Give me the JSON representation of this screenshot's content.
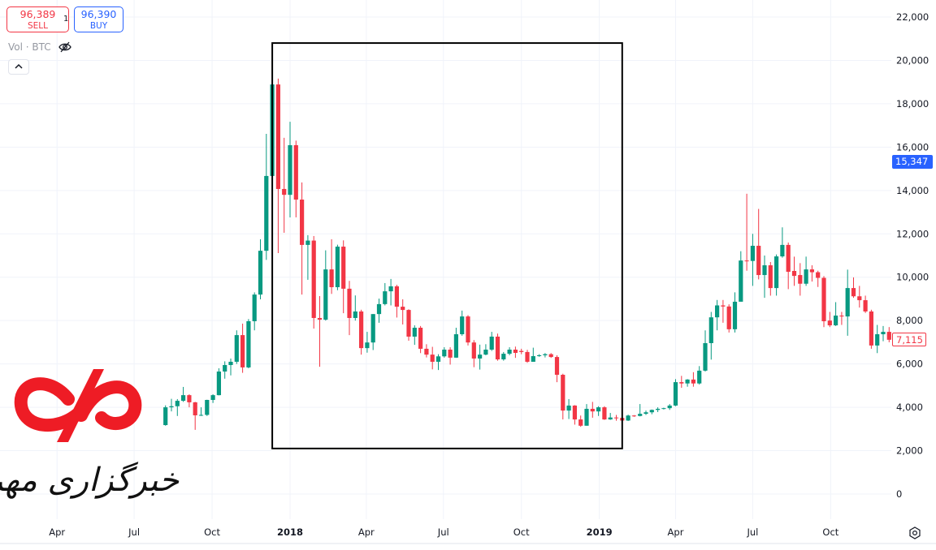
{
  "trade": {
    "sell_price": "96,389",
    "sell_label": "SELL",
    "spread": "1",
    "buy_price": "96,390",
    "buy_label": "BUY"
  },
  "legend": {
    "text": "Vol · BTC",
    "visibility_icon": "eye-off-icon",
    "collapse_icon": "chevron-up-icon"
  },
  "price_labels": {
    "last": "15,347",
    "current": "7,115"
  },
  "colors": {
    "up": "#089981",
    "down": "#f23645",
    "accent": "#2962ff",
    "box": "#000000",
    "grid": "#f0f3fa"
  },
  "settings_icon": "gear-icon",
  "logo": {
    "text": "خبرگزاری مهر",
    "color": "#ee1c25"
  },
  "chart_data": {
    "type": "candlestick",
    "symbol": "BTC",
    "interval": "weekly",
    "ylim": [
      0,
      22000
    ],
    "grid": true,
    "y_ticks": [
      0,
      2000,
      4000,
      6000,
      8000,
      10000,
      12000,
      14000,
      16000,
      18000,
      20000,
      22000
    ],
    "y_tick_labels": [
      "0",
      "2,000",
      "4,000",
      "6,000",
      "8,000",
      "10,000",
      "12,000",
      "14,000",
      "16,000",
      "18,000",
      "20,000",
      "22,000"
    ],
    "x_ticks": [
      {
        "date": "2017-04-01",
        "label": "Apr",
        "bold": false
      },
      {
        "date": "2017-07-01",
        "label": "Jul",
        "bold": false
      },
      {
        "date": "2017-10-01",
        "label": "Oct",
        "bold": false
      },
      {
        "date": "2018-01-01",
        "label": "2018",
        "bold": true
      },
      {
        "date": "2018-04-01",
        "label": "Apr",
        "bold": false
      },
      {
        "date": "2018-07-01",
        "label": "Jul",
        "bold": false
      },
      {
        "date": "2018-10-01",
        "label": "Oct",
        "bold": false
      },
      {
        "date": "2019-01-01",
        "label": "2019",
        "bold": true
      },
      {
        "date": "2019-04-01",
        "label": "Apr",
        "bold": false
      },
      {
        "date": "2019-07-01",
        "label": "Jul",
        "bold": false
      },
      {
        "date": "2019-10-01",
        "label": "Oct",
        "bold": false
      }
    ],
    "annotation_rectangle": {
      "from_date": "2017-12-11",
      "to_date": "2019-01-28",
      "top": 20800,
      "bottom": 2100
    },
    "columns": [
      "date",
      "open",
      "high",
      "low",
      "close"
    ],
    "candles": [
      [
        "2017-08-07",
        3180,
        4090,
        3150,
        4000
      ],
      [
        "2017-08-14",
        4000,
        4390,
        3810,
        4050
      ],
      [
        "2017-08-21",
        4050,
        4380,
        3600,
        4300
      ],
      [
        "2017-08-28",
        4300,
        4940,
        4250,
        4560
      ],
      [
        "2017-09-04",
        4560,
        4600,
        4000,
        4230
      ],
      [
        "2017-09-11",
        4230,
        4250,
        2960,
        3630
      ],
      [
        "2017-09-18",
        3630,
        4000,
        3600,
        3650
      ],
      [
        "2017-09-25",
        3650,
        4350,
        3600,
        4340
      ],
      [
        "2017-10-02",
        4340,
        4600,
        4200,
        4560
      ],
      [
        "2017-10-09",
        4560,
        5800,
        4550,
        5650
      ],
      [
        "2017-10-16",
        5650,
        6120,
        5320,
        5950
      ],
      [
        "2017-10-23",
        5950,
        6250,
        5470,
        6100
      ],
      [
        "2017-10-30",
        6100,
        7550,
        6000,
        7330
      ],
      [
        "2017-11-06",
        7330,
        7860,
        5590,
        5840
      ],
      [
        "2017-11-13",
        5840,
        8070,
        5800,
        7970
      ],
      [
        "2017-11-20",
        7970,
        9300,
        7550,
        9200
      ],
      [
        "2017-11-27",
        9200,
        11750,
        8980,
        11220
      ],
      [
        "2017-12-04",
        11220,
        16610,
        10800,
        14670
      ],
      [
        "2017-12-11",
        14670,
        19610,
        14600,
        18890
      ],
      [
        "2017-12-18",
        18890,
        19160,
        11110,
        14070
      ],
      [
        "2017-12-25",
        14070,
        16430,
        12050,
        13800
      ],
      [
        "2018-01-01",
        13800,
        17170,
        12760,
        16090
      ],
      [
        "2018-01-08",
        16090,
        16300,
        12760,
        13580
      ],
      [
        "2018-01-15",
        13580,
        14370,
        9200,
        11490
      ],
      [
        "2018-01-22",
        11490,
        11940,
        9880,
        11690
      ],
      [
        "2018-01-29",
        11690,
        11900,
        7630,
        8120
      ],
      [
        "2018-02-05",
        8120,
        9130,
        5870,
        8040
      ],
      [
        "2018-02-12",
        8040,
        11240,
        8000,
        10360
      ],
      [
        "2018-02-19",
        10360,
        11750,
        9230,
        9540
      ],
      [
        "2018-02-26",
        9540,
        11500,
        9400,
        11410
      ],
      [
        "2018-03-05",
        11410,
        11700,
        8340,
        9470
      ],
      [
        "2018-03-12",
        9470,
        9830,
        7330,
        8120
      ],
      [
        "2018-03-19",
        8120,
        9160,
        8000,
        8420
      ],
      [
        "2018-03-26",
        8420,
        8500,
        6430,
        6730
      ],
      [
        "2018-04-02",
        6730,
        7480,
        6520,
        6990
      ],
      [
        "2018-04-09",
        6990,
        8300,
        6640,
        8300
      ],
      [
        "2018-04-16",
        8300,
        9010,
        7900,
        8760
      ],
      [
        "2018-04-23",
        8760,
        9730,
        8700,
        9350
      ],
      [
        "2018-04-30",
        9350,
        9920,
        8700,
        9580
      ],
      [
        "2018-05-07",
        9580,
        9650,
        8140,
        8640
      ],
      [
        "2018-05-14",
        8640,
        8980,
        7820,
        8490
      ],
      [
        "2018-05-21",
        8490,
        8520,
        7070,
        7260
      ],
      [
        "2018-05-28",
        7260,
        7780,
        6880,
        7670
      ],
      [
        "2018-06-04",
        7670,
        7750,
        6500,
        6700
      ],
      [
        "2018-06-11",
        6700,
        6910,
        6300,
        6430
      ],
      [
        "2018-06-18",
        6430,
        6790,
        5750,
        6100
      ],
      [
        "2018-06-25",
        6100,
        6450,
        5720,
        6350
      ],
      [
        "2018-07-02",
        6350,
        6770,
        6290,
        6660
      ],
      [
        "2018-07-09",
        6660,
        6770,
        5970,
        6290
      ],
      [
        "2018-07-16",
        6290,
        7670,
        6280,
        7370
      ],
      [
        "2018-07-23",
        7370,
        8460,
        7300,
        8190
      ],
      [
        "2018-07-30",
        8190,
        8250,
        6850,
        6990
      ],
      [
        "2018-08-06",
        6990,
        7100,
        5850,
        6250
      ],
      [
        "2018-08-13",
        6250,
        6890,
        5740,
        6430
      ],
      [
        "2018-08-20",
        6430,
        6910,
        6400,
        6660
      ],
      [
        "2018-08-27",
        6660,
        7480,
        6600,
        7260
      ],
      [
        "2018-09-03",
        7260,
        7400,
        6150,
        6210
      ],
      [
        "2018-09-10",
        6210,
        6550,
        6150,
        6470
      ],
      [
        "2018-09-17",
        6470,
        6770,
        6400,
        6660
      ],
      [
        "2018-09-24",
        6660,
        6800,
        6280,
        6510
      ],
      [
        "2018-10-01",
        6600,
        6700,
        6450,
        6550
      ],
      [
        "2018-10-08",
        6550,
        6650,
        6050,
        6100
      ],
      [
        "2018-10-15",
        6100,
        6750,
        6100,
        6360
      ],
      [
        "2018-10-22",
        6360,
        6450,
        6330,
        6400
      ],
      [
        "2018-10-29",
        6400,
        6500,
        6300,
        6450
      ],
      [
        "2018-11-05",
        6450,
        6500,
        6280,
        6320
      ],
      [
        "2018-11-12",
        6320,
        6400,
        5160,
        5500
      ],
      [
        "2018-11-19",
        5500,
        5550,
        3440,
        3850
      ],
      [
        "2018-11-26",
        3850,
        4380,
        3460,
        4080
      ],
      [
        "2018-12-03",
        4080,
        4100,
        3200,
        3440
      ],
      [
        "2018-12-10",
        3440,
        3620,
        3100,
        3150
      ],
      [
        "2018-12-17",
        3150,
        4150,
        3150,
        3930
      ],
      [
        "2018-12-24",
        3930,
        4250,
        3520,
        3810
      ],
      [
        "2018-12-31",
        3810,
        4050,
        3600,
        4000
      ],
      [
        "2019-01-07",
        4000,
        4050,
        3420,
        3440
      ],
      [
        "2019-01-14",
        3440,
        3740,
        3420,
        3530
      ],
      [
        "2019-01-21",
        3530,
        3650,
        3380,
        3510
      ],
      [
        "2019-01-28",
        3510,
        3560,
        3380,
        3390
      ],
      [
        "2019-02-04",
        3390,
        3660,
        3370,
        3620
      ],
      [
        "2019-02-11",
        3620,
        3640,
        3560,
        3600
      ],
      [
        "2019-02-18",
        3600,
        4150,
        3580,
        3700
      ],
      [
        "2019-02-25",
        3700,
        3850,
        3650,
        3770
      ],
      [
        "2019-03-04",
        3770,
        3900,
        3680,
        3880
      ],
      [
        "2019-03-11",
        3880,
        4000,
        3780,
        3930
      ],
      [
        "2019-03-18",
        3930,
        3980,
        3900,
        3960
      ],
      [
        "2019-03-25",
        3960,
        4150,
        3880,
        4080
      ],
      [
        "2019-04-01",
        4080,
        5300,
        4050,
        5160
      ],
      [
        "2019-04-08",
        5160,
        5450,
        4900,
        5100
      ],
      [
        "2019-04-15",
        5100,
        5300,
        4950,
        5280
      ],
      [
        "2019-04-22",
        5280,
        5620,
        4950,
        5100
      ],
      [
        "2019-04-29",
        5100,
        5900,
        5050,
        5690
      ],
      [
        "2019-05-06",
        5690,
        7550,
        5650,
        6960
      ],
      [
        "2019-05-13",
        6960,
        8400,
        6200,
        8150
      ],
      [
        "2019-05-20",
        8150,
        8950,
        7550,
        8700
      ],
      [
        "2019-05-27",
        8700,
        8950,
        7900,
        8650
      ],
      [
        "2019-06-03",
        8650,
        8750,
        7450,
        7600
      ],
      [
        "2019-06-10",
        7600,
        9300,
        7450,
        8870
      ],
      [
        "2019-06-17",
        8870,
        11200,
        8900,
        10770
      ],
      [
        "2019-06-24",
        10770,
        13850,
        10300,
        10750
      ],
      [
        "2019-07-01",
        10750,
        12000,
        9600,
        11450
      ],
      [
        "2019-07-08",
        11450,
        13150,
        9900,
        10100
      ],
      [
        "2019-07-15",
        10100,
        11000,
        9050,
        10550
      ],
      [
        "2019-07-22",
        10550,
        10700,
        9150,
        9500
      ],
      [
        "2019-07-29",
        9500,
        11050,
        9150,
        10960
      ],
      [
        "2019-08-05",
        10960,
        12300,
        10900,
        11490
      ],
      [
        "2019-08-12",
        11490,
        11600,
        9450,
        10250
      ],
      [
        "2019-08-19",
        10290,
        10950,
        9600,
        10060
      ],
      [
        "2019-08-26",
        10100,
        10650,
        9150,
        9700
      ],
      [
        "2019-09-02",
        9700,
        10950,
        9600,
        10360
      ],
      [
        "2019-09-09",
        10360,
        10550,
        9800,
        10230
      ],
      [
        "2019-09-16",
        10230,
        10300,
        9550,
        9970
      ],
      [
        "2019-09-23",
        9970,
        10050,
        7700,
        7970
      ],
      [
        "2019-09-30",
        8000,
        8400,
        7700,
        7780
      ],
      [
        "2019-10-07",
        7780,
        8850,
        7750,
        8230
      ],
      [
        "2019-10-14",
        8230,
        8400,
        7800,
        8190
      ],
      [
        "2019-10-21",
        8190,
        10350,
        7300,
        9500
      ],
      [
        "2019-10-28",
        9500,
        9990,
        9050,
        9120
      ],
      [
        "2019-11-04",
        9120,
        9600,
        8600,
        8940
      ],
      [
        "2019-11-11",
        8940,
        9150,
        8350,
        8420
      ],
      [
        "2019-11-18",
        8420,
        8500,
        6700,
        6850
      ],
      [
        "2019-11-25",
        6850,
        7800,
        6500,
        7370
      ],
      [
        "2019-12-02",
        7370,
        7750,
        7050,
        7480
      ],
      [
        "2019-12-09",
        7480,
        7700,
        7000,
        7115
      ]
    ]
  }
}
